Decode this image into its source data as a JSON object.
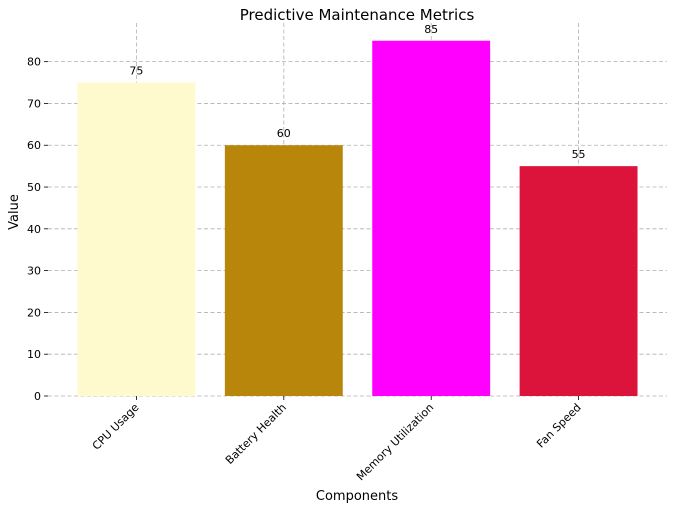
{
  "chart_data": {
    "type": "bar",
    "title": "Predictive Maintenance Metrics",
    "xlabel": "Components",
    "ylabel": "Value",
    "categories": [
      "CPU Usage",
      "Battery Health",
      "Memory Utilization",
      "Fan Speed"
    ],
    "values": [
      75,
      60,
      85,
      55
    ],
    "colors": [
      "#fffacd",
      "#b8860b",
      "#ff00ff",
      "#dc143c"
    ],
    "ylim": [
      0,
      89.25
    ],
    "yticks": [
      0,
      10,
      20,
      30,
      40,
      50,
      60,
      70,
      80
    ],
    "grid": true,
    "legend": "none"
  }
}
